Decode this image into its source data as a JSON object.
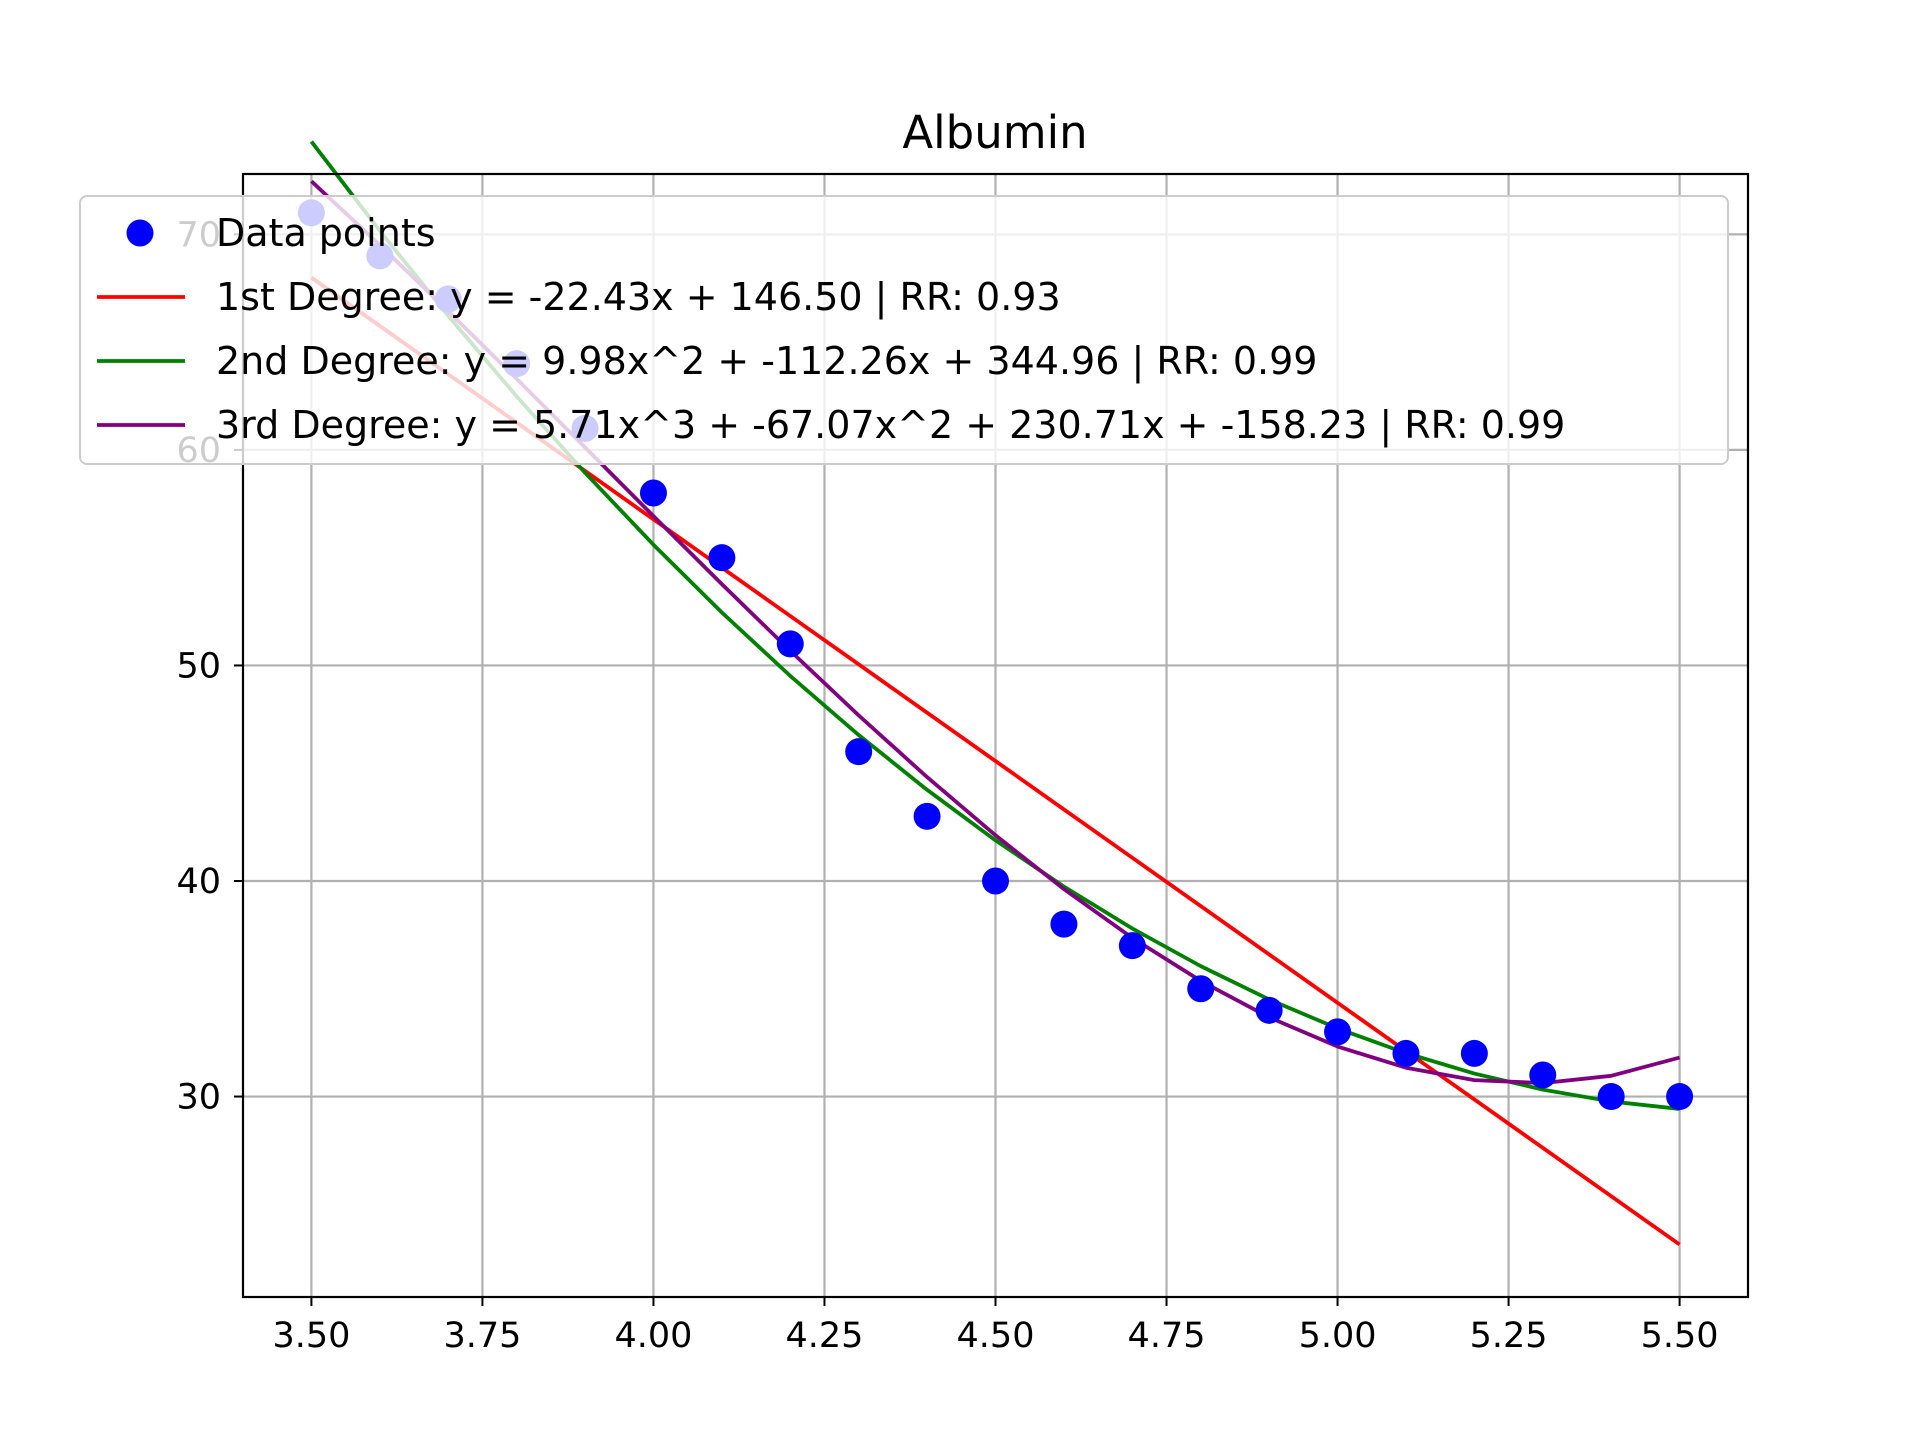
{
  "chart_data": {
    "type": "scatter",
    "title": "Albumin",
    "xlabel": "",
    "ylabel": "",
    "xlim": [
      3.4,
      5.6
    ],
    "ylim": [
      20.7,
      72.8
    ],
    "xticks": [
      3.5,
      3.75,
      4.0,
      4.25,
      4.5,
      4.75,
      5.0,
      5.25,
      5.5
    ],
    "xtick_labels": [
      "3.50",
      "3.75",
      "4.00",
      "4.25",
      "4.50",
      "4.75",
      "5.00",
      "5.25",
      "5.50"
    ],
    "yticks": [
      30,
      40,
      50,
      60,
      70
    ],
    "ytick_labels": [
      "30",
      "40",
      "50",
      "60",
      "70"
    ],
    "grid": true,
    "legend_position": "upper-left",
    "points": {
      "name": "Data points",
      "color": "#0000ff",
      "x": [
        3.5,
        3.6,
        3.7,
        3.8,
        3.9,
        4.0,
        4.1,
        4.2,
        4.3,
        4.4,
        4.5,
        4.6,
        4.7,
        4.8,
        4.9,
        5.0,
        5.1,
        5.2,
        5.3,
        5.4,
        5.5
      ],
      "y": [
        71,
        69,
        67,
        64,
        61,
        58,
        55,
        51,
        46,
        43,
        40,
        38,
        37,
        35,
        34,
        33,
        32,
        32,
        31,
        30,
        30
      ]
    },
    "series": [
      {
        "name": "1st Degree: y = -22.43x + 146.50 | RR: 0.93",
        "color": "#ff0000",
        "coefficients": [
          -22.43,
          146.5
        ]
      },
      {
        "name": "2nd Degree: y = 9.98x^2 + -112.26x + 344.96 | RR: 0.99",
        "color": "#008000",
        "coefficients": [
          9.98,
          -112.26,
          344.96
        ]
      },
      {
        "name": "3rd Degree: y = 5.71x^3 + -67.07x^2 + 230.71x + -158.23 | RR: 0.99",
        "color": "#800080",
        "coefficients": [
          5.71,
          -67.07,
          230.71,
          -158.23
        ]
      }
    ]
  }
}
